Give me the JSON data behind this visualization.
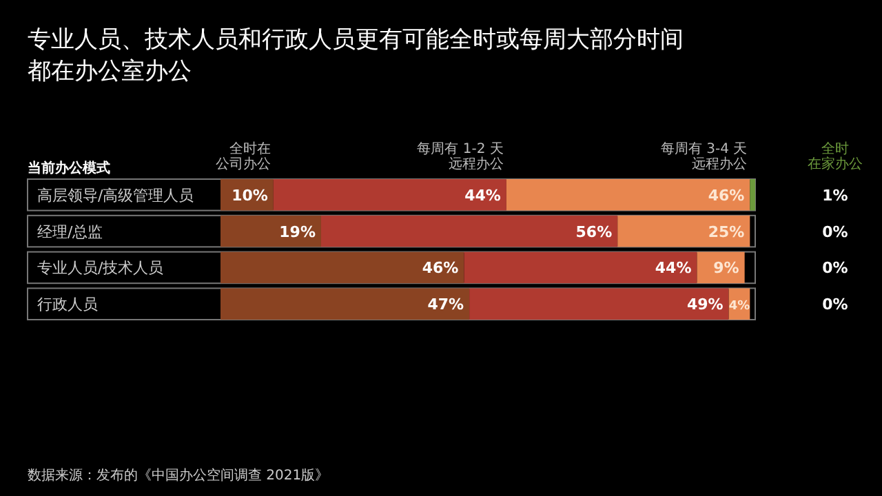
{
  "chart_data": {
    "type": "bar",
    "orientation": "horizontal",
    "stacked": true,
    "legend": "top",
    "title": "专业人员、技术人员和行政人员更有可能全时或每周大部分时间都在办公室办公",
    "ylabel": "当前办公模式",
    "categories": [
      "高层领导/高级管理人员",
      "经理/总监",
      "专业人员/技术人员",
      "行政人员"
    ],
    "series": [
      {
        "name": "全时在公司办公",
        "color": "#8a4322",
        "values": [
          10,
          19,
          46,
          47
        ],
        "value_labels": [
          "10%",
          "19%",
          "46%",
          "47%"
        ]
      },
      {
        "name": "每周有 1-2 天远程办公",
        "color": "#b03a30",
        "values": [
          44,
          56,
          44,
          49
        ],
        "value_labels": [
          "44%",
          "56%",
          "44%",
          "49%"
        ]
      },
      {
        "name": "每周有 3-4 天远程办公",
        "color": "#e8864f",
        "values": [
          46,
          25,
          9,
          4
        ],
        "value_labels": [
          "46%",
          "25%",
          "9%",
          "4%"
        ]
      },
      {
        "name": "全时在家办公",
        "color": "#6c9a3c",
        "values": [
          1,
          0,
          0,
          0
        ],
        "value_labels": [
          "1%",
          "0%",
          "0%",
          "0%"
        ]
      }
    ],
    "annotations": [
      "数据来源：发布的《中国办公空间调查 2021版》"
    ]
  }
}
